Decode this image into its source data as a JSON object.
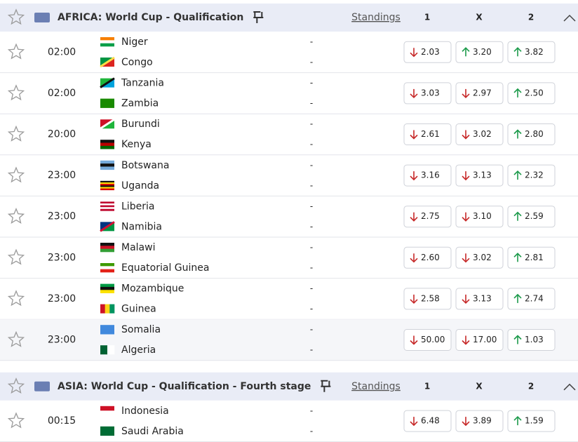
{
  "sections": [
    {
      "title": "AFRICA: World Cup - Qualification",
      "standings": "Standings",
      "columns": [
        "1",
        "X",
        "2"
      ],
      "matches": [
        {
          "time": "02:00",
          "home": "Niger",
          "away": "Congo",
          "home_score": "-",
          "away_score": "-",
          "odds": [
            {
              "value": "2.03",
              "trend": "down"
            },
            {
              "value": "3.20",
              "trend": "up"
            },
            {
              "value": "3.82",
              "trend": "up"
            }
          ]
        },
        {
          "time": "02:00",
          "home": "Tanzania",
          "away": "Zambia",
          "home_score": "-",
          "away_score": "-",
          "odds": [
            {
              "value": "3.03",
              "trend": "down"
            },
            {
              "value": "2.97",
              "trend": "down"
            },
            {
              "value": "2.50",
              "trend": "up"
            }
          ]
        },
        {
          "time": "20:00",
          "home": "Burundi",
          "away": "Kenya",
          "home_score": "-",
          "away_score": "-",
          "odds": [
            {
              "value": "2.61",
              "trend": "down"
            },
            {
              "value": "3.02",
              "trend": "down"
            },
            {
              "value": "2.80",
              "trend": "up"
            }
          ]
        },
        {
          "time": "23:00",
          "home": "Botswana",
          "away": "Uganda",
          "home_score": "-",
          "away_score": "-",
          "odds": [
            {
              "value": "3.16",
              "trend": "down"
            },
            {
              "value": "3.13",
              "trend": "down"
            },
            {
              "value": "2.32",
              "trend": "up"
            }
          ]
        },
        {
          "time": "23:00",
          "home": "Liberia",
          "away": "Namibia",
          "home_score": "-",
          "away_score": "-",
          "odds": [
            {
              "value": "2.75",
              "trend": "down"
            },
            {
              "value": "3.10",
              "trend": "down"
            },
            {
              "value": "2.59",
              "trend": "up"
            }
          ]
        },
        {
          "time": "23:00",
          "home": "Malawi",
          "away": "Equatorial Guinea",
          "home_score": "-",
          "away_score": "-",
          "odds": [
            {
              "value": "2.60",
              "trend": "down"
            },
            {
              "value": "3.02",
              "trend": "down"
            },
            {
              "value": "2.81",
              "trend": "up"
            }
          ]
        },
        {
          "time": "23:00",
          "home": "Mozambique",
          "away": "Guinea",
          "home_score": "-",
          "away_score": "-",
          "odds": [
            {
              "value": "2.58",
              "trend": "down"
            },
            {
              "value": "3.13",
              "trend": "down"
            },
            {
              "value": "2.74",
              "trend": "up"
            }
          ]
        },
        {
          "time": "23:00",
          "home": "Somalia",
          "away": "Algeria",
          "home_score": "-",
          "away_score": "-",
          "odds": [
            {
              "value": "50.00",
              "trend": "down"
            },
            {
              "value": "17.00",
              "trend": "down"
            },
            {
              "value": "1.03",
              "trend": "up"
            }
          ]
        }
      ]
    },
    {
      "title": "ASIA: World Cup - Qualification - Fourth stage",
      "standings": "Standings",
      "columns": [
        "1",
        "X",
        "2"
      ],
      "matches": [
        {
          "time": "00:15",
          "home": "Indonesia",
          "away": "Saudi Arabia",
          "home_score": "-",
          "away_score": "-",
          "odds": [
            {
              "value": "6.48",
              "trend": "down"
            },
            {
              "value": "3.89",
              "trend": "down"
            },
            {
              "value": "1.59",
              "trend": "up"
            }
          ]
        }
      ]
    }
  ]
}
